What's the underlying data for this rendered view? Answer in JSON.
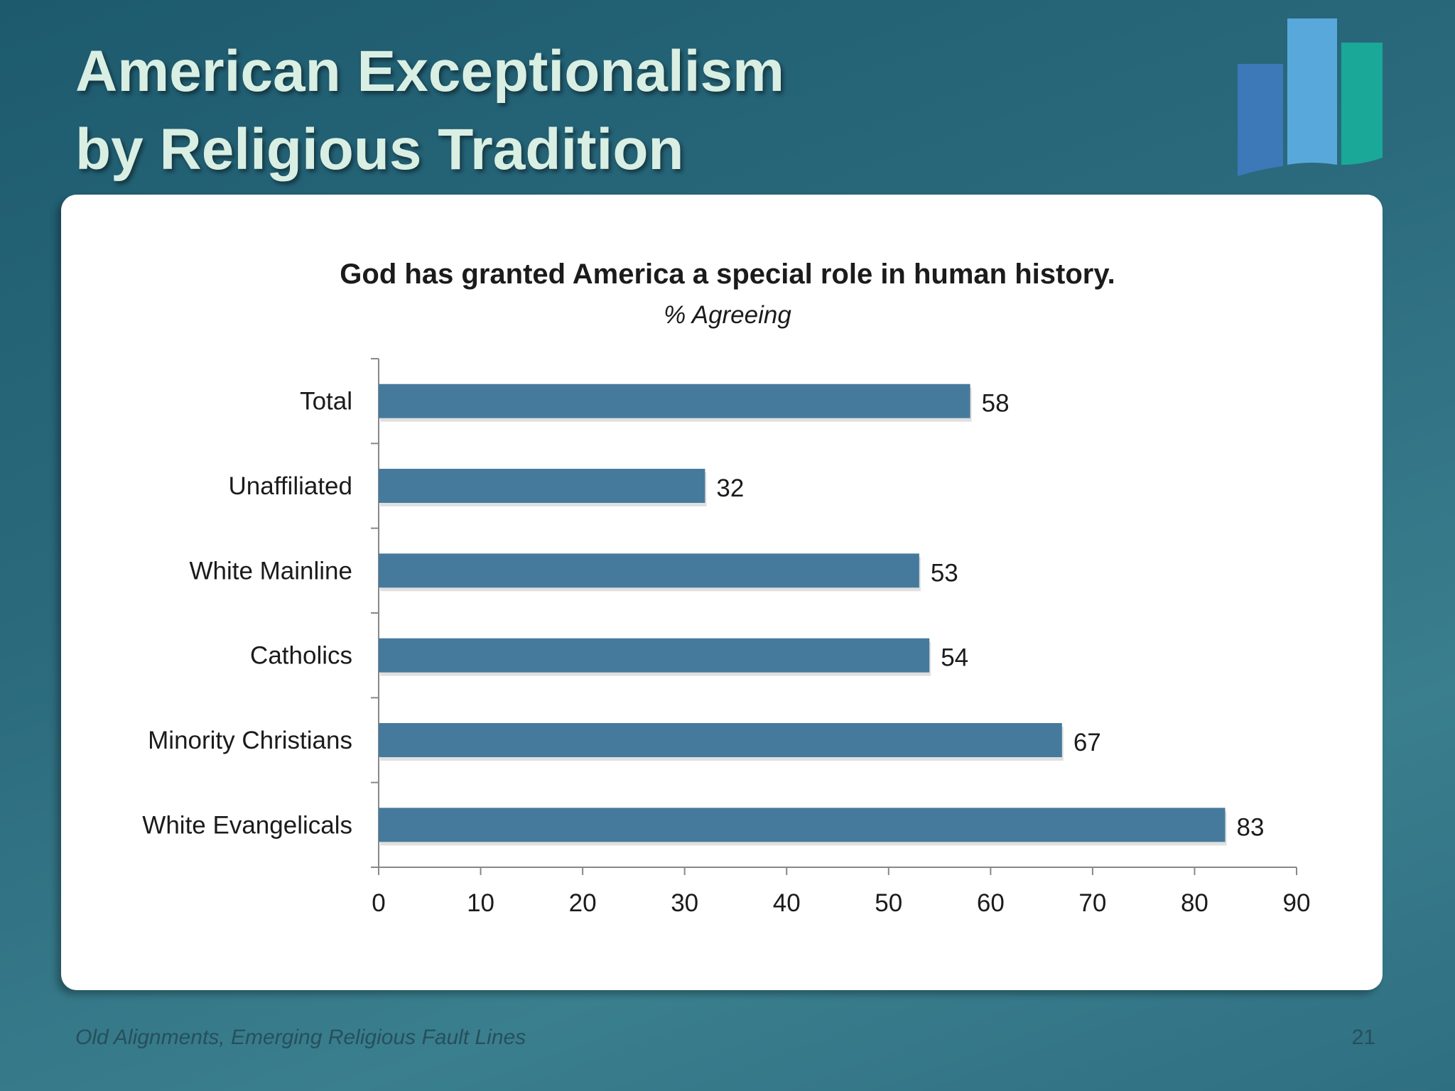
{
  "slide": {
    "title_line1": "American Exceptionalism",
    "title_line2": "by Religious Tradition",
    "footer": "Old Alignments, Emerging Religious Fault Lines",
    "page_number": "21"
  },
  "logo": {
    "icon": "bar-chart-logo-icon",
    "colors": [
      "#3d78b8",
      "#58a8dc",
      "#1aa898"
    ]
  },
  "colors": {
    "bar": "#467a9c",
    "axis": "#888888",
    "text": "#1b1b1b"
  },
  "chart_data": {
    "type": "bar",
    "orientation": "horizontal",
    "title": "God has granted America a special role in human history.",
    "subtitle": "% Agreeing",
    "categories": [
      "Total",
      "Unaffiliated",
      "White Mainline",
      "Catholics",
      "Minority Christians",
      "White Evangelicals"
    ],
    "values": [
      58,
      32,
      53,
      54,
      67,
      83
    ],
    "data_labels": [
      "58",
      "32",
      "53",
      "54",
      "67",
      "83"
    ],
    "xlim": [
      0,
      90
    ],
    "xticks": [
      "0",
      "10",
      "20",
      "30",
      "40",
      "50",
      "60",
      "70",
      "80",
      "90"
    ],
    "grid": false,
    "legend": "none"
  }
}
